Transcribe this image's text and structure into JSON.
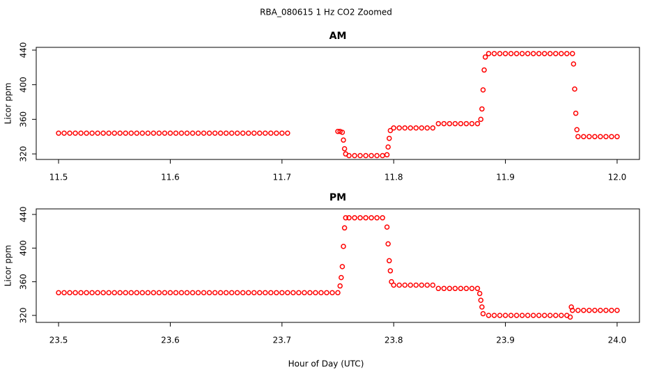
{
  "title": "RBA_080615  1 Hz CO2 Zoomed",
  "x_label": "Hour of Day (UTC)",
  "chart_data": [
    {
      "type": "scatter",
      "title": "AM",
      "y_label": "Licor ppm",
      "color": "#ff0000",
      "xlim": [
        11.48,
        12.02
      ],
      "ylim": [
        313.6,
        443.2
      ],
      "xticks": [
        11.5,
        11.6,
        11.7,
        11.8,
        11.9,
        {
          "value": 12,
          "label": "12.0"
        }
      ],
      "yticks": [
        320,
        360,
        400,
        440
      ],
      "x": [
        11.5,
        11.505,
        11.51,
        11.515,
        11.52,
        11.525,
        11.53,
        11.535,
        11.54,
        11.545,
        11.55,
        11.555,
        11.56,
        11.565,
        11.57,
        11.575,
        11.58,
        11.585,
        11.59,
        11.595,
        11.6,
        11.605,
        11.61,
        11.615,
        11.62,
        11.625,
        11.63,
        11.635,
        11.64,
        11.645,
        11.65,
        11.655,
        11.66,
        11.665,
        11.67,
        11.675,
        11.68,
        11.685,
        11.69,
        11.695,
        11.7,
        11.705,
        11.75,
        11.752,
        11.754,
        11.755,
        11.756,
        11.757,
        11.76,
        11.765,
        11.77,
        11.775,
        11.78,
        11.785,
        11.79,
        11.794,
        11.795,
        11.796,
        11.797,
        11.8,
        11.805,
        11.81,
        11.815,
        11.82,
        11.825,
        11.83,
        11.835,
        11.84,
        11.845,
        11.85,
        11.855,
        11.86,
        11.865,
        11.87,
        11.875,
        11.878,
        11.879,
        11.88,
        11.881,
        11.882,
        11.885,
        11.89,
        11.895,
        11.9,
        11.905,
        11.91,
        11.915,
        11.92,
        11.925,
        11.93,
        11.935,
        11.94,
        11.945,
        11.95,
        11.955,
        11.96,
        11.961,
        11.962,
        11.963,
        11.964,
        11.965,
        11.97,
        11.975,
        11.98,
        11.985,
        11.99,
        11.995,
        12.0
      ],
      "values": [
        344,
        344,
        344,
        344,
        344,
        344,
        344,
        344,
        344,
        344,
        344,
        344,
        344,
        344,
        344,
        344,
        344,
        344,
        344,
        344,
        344,
        344,
        344,
        344,
        344,
        344,
        344,
        344,
        344,
        344,
        344,
        344,
        344,
        344,
        344,
        344,
        344,
        344,
        344,
        344,
        344,
        344,
        346,
        346,
        345,
        336,
        326,
        320,
        318,
        318,
        318,
        318,
        318,
        318,
        318,
        319,
        328,
        338,
        347,
        350,
        350,
        350,
        350,
        350,
        350,
        350,
        350,
        355,
        355,
        355,
        355,
        355,
        355,
        355,
        355,
        360,
        372,
        394,
        417,
        432,
        436,
        436,
        436,
        436,
        436,
        436,
        436,
        436,
        436,
        436,
        436,
        436,
        436,
        436,
        436,
        436,
        424,
        395,
        367,
        348,
        340,
        340,
        340,
        340,
        340,
        340,
        340,
        340
      ]
    },
    {
      "type": "scatter",
      "title": "PM",
      "y_label": "Licor ppm",
      "color": "#ff0000",
      "xlim": [
        23.48,
        24.02
      ],
      "ylim": [
        311.7,
        446.6
      ],
      "xticks": [
        23.5,
        23.6,
        23.7,
        23.8,
        23.9,
        {
          "value": 24,
          "label": "24.0"
        }
      ],
      "yticks": [
        320,
        360,
        400,
        440
      ],
      "x": [
        23.5,
        23.505,
        23.51,
        23.515,
        23.52,
        23.525,
        23.53,
        23.535,
        23.54,
        23.545,
        23.55,
        23.555,
        23.56,
        23.565,
        23.57,
        23.575,
        23.58,
        23.585,
        23.59,
        23.595,
        23.6,
        23.605,
        23.61,
        23.615,
        23.62,
        23.625,
        23.63,
        23.635,
        23.64,
        23.645,
        23.65,
        23.655,
        23.66,
        23.665,
        23.67,
        23.675,
        23.68,
        23.685,
        23.69,
        23.695,
        23.7,
        23.705,
        23.71,
        23.715,
        23.72,
        23.725,
        23.73,
        23.735,
        23.74,
        23.745,
        23.75,
        23.752,
        23.753,
        23.754,
        23.755,
        23.756,
        23.757,
        23.76,
        23.765,
        23.77,
        23.775,
        23.78,
        23.785,
        23.79,
        23.794,
        23.795,
        23.796,
        23.797,
        23.798,
        23.8,
        23.805,
        23.81,
        23.815,
        23.82,
        23.825,
        23.83,
        23.835,
        23.84,
        23.845,
        23.85,
        23.855,
        23.86,
        23.865,
        23.87,
        23.875,
        23.877,
        23.878,
        23.879,
        23.88,
        23.885,
        23.89,
        23.895,
        23.9,
        23.905,
        23.91,
        23.915,
        23.92,
        23.925,
        23.93,
        23.935,
        23.94,
        23.945,
        23.95,
        23.955,
        23.958,
        23.959,
        23.96,
        23.965,
        23.97,
        23.975,
        23.98,
        23.985,
        23.99,
        23.995,
        24.0
      ],
      "values": [
        347,
        347,
        347,
        347,
        347,
        347,
        347,
        347,
        347,
        347,
        347,
        347,
        347,
        347,
        347,
        347,
        347,
        347,
        347,
        347,
        347,
        347,
        347,
        347,
        347,
        347,
        347,
        347,
        347,
        347,
        347,
        347,
        347,
        347,
        347,
        347,
        347,
        347,
        347,
        347,
        347,
        347,
        347,
        347,
        347,
        347,
        347,
        347,
        347,
        347,
        347,
        355,
        365,
        378,
        402,
        424,
        436,
        436,
        436,
        436,
        436,
        436,
        436,
        436,
        425,
        405,
        385,
        373,
        360,
        356,
        356,
        356,
        356,
        356,
        356,
        356,
        356,
        352,
        352,
        352,
        352,
        352,
        352,
        352,
        352,
        346,
        338,
        330,
        322,
        320,
        320,
        320,
        320,
        320,
        320,
        320,
        320,
        320,
        320,
        320,
        320,
        320,
        320,
        320,
        318,
        330,
        326,
        326,
        326,
        326,
        326,
        326,
        326,
        326,
        326
      ]
    }
  ]
}
